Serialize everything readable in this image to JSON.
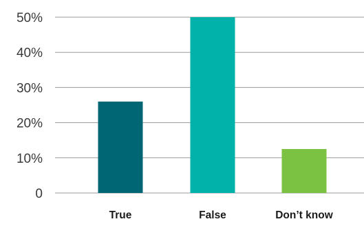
{
  "chart_data": {
    "type": "bar",
    "title": "",
    "xlabel": "",
    "ylabel": "",
    "categories": [
      "True",
      "False",
      "Don’t know"
    ],
    "values": [
      26,
      50,
      12.5
    ],
    "ylim": [
      0,
      50
    ],
    "yticks": [
      0,
      10,
      20,
      30,
      40,
      50
    ],
    "ytick_labels": [
      "0",
      "10%",
      "20%",
      "30%",
      "40%",
      "50%"
    ],
    "grid": true,
    "legend": "none",
    "colors": [
      "#006673",
      "#00b2aa",
      "#7bc242"
    ]
  }
}
